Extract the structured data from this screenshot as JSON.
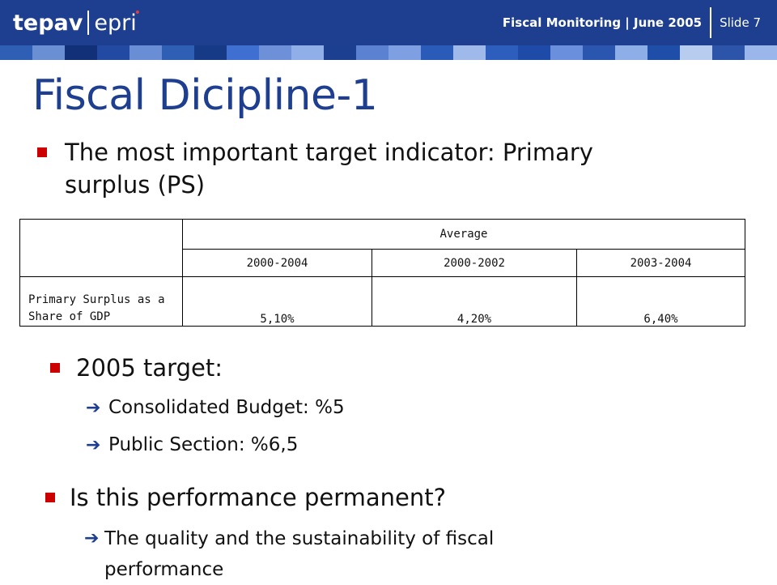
{
  "header": {
    "logo_left": "tepav",
    "logo_right": "epri",
    "title": "Fiscal Monitoring | June 2005",
    "slide": "Slide 7"
  },
  "strip_colors": [
    "#2f5fb5",
    "#6b8fd3",
    "#123078",
    "#234aa3",
    "#6a8ed6",
    "#2f5fb5",
    "#163a86",
    "#3f6fd1",
    "#6d90d9",
    "#90aee7",
    "#1c3f8f",
    "#5b82d0",
    "#7ea0e2",
    "#2b5bb9",
    "#9fb9ea",
    "#2d5ebd",
    "#1e4aa8",
    "#6a8fdc",
    "#2a56b0",
    "#8eaee8",
    "#1f4ea9",
    "#b8ccef",
    "#2c55aa",
    "#9bb6ea"
  ],
  "accent_color": "#1e3f8f",
  "bullet_color": "#cc0000",
  "title": "Fiscal Dicipline-1",
  "bullet1": "The most important target indicator: Primary surplus (PS)",
  "table": {
    "group_header": "Average",
    "columns": [
      "2000-2004",
      "2000-2002",
      "2003-2004"
    ],
    "row_label": "Primary Surplus as a Share of GDP",
    "values": [
      "5,10%",
      "4,20%",
      "6,40%"
    ]
  },
  "bullet2": {
    "label": "2005 target:",
    "items": [
      "Consolidated Budget: %5",
      "Public Section: %6,5"
    ]
  },
  "bullet3": {
    "label": "Is this performance permanent?",
    "items": [
      "The quality and the sustainability of fiscal performance"
    ]
  },
  "icons": {
    "bullet": "square-bullet-icon",
    "sub_bullet": "arrow-right-icon"
  }
}
